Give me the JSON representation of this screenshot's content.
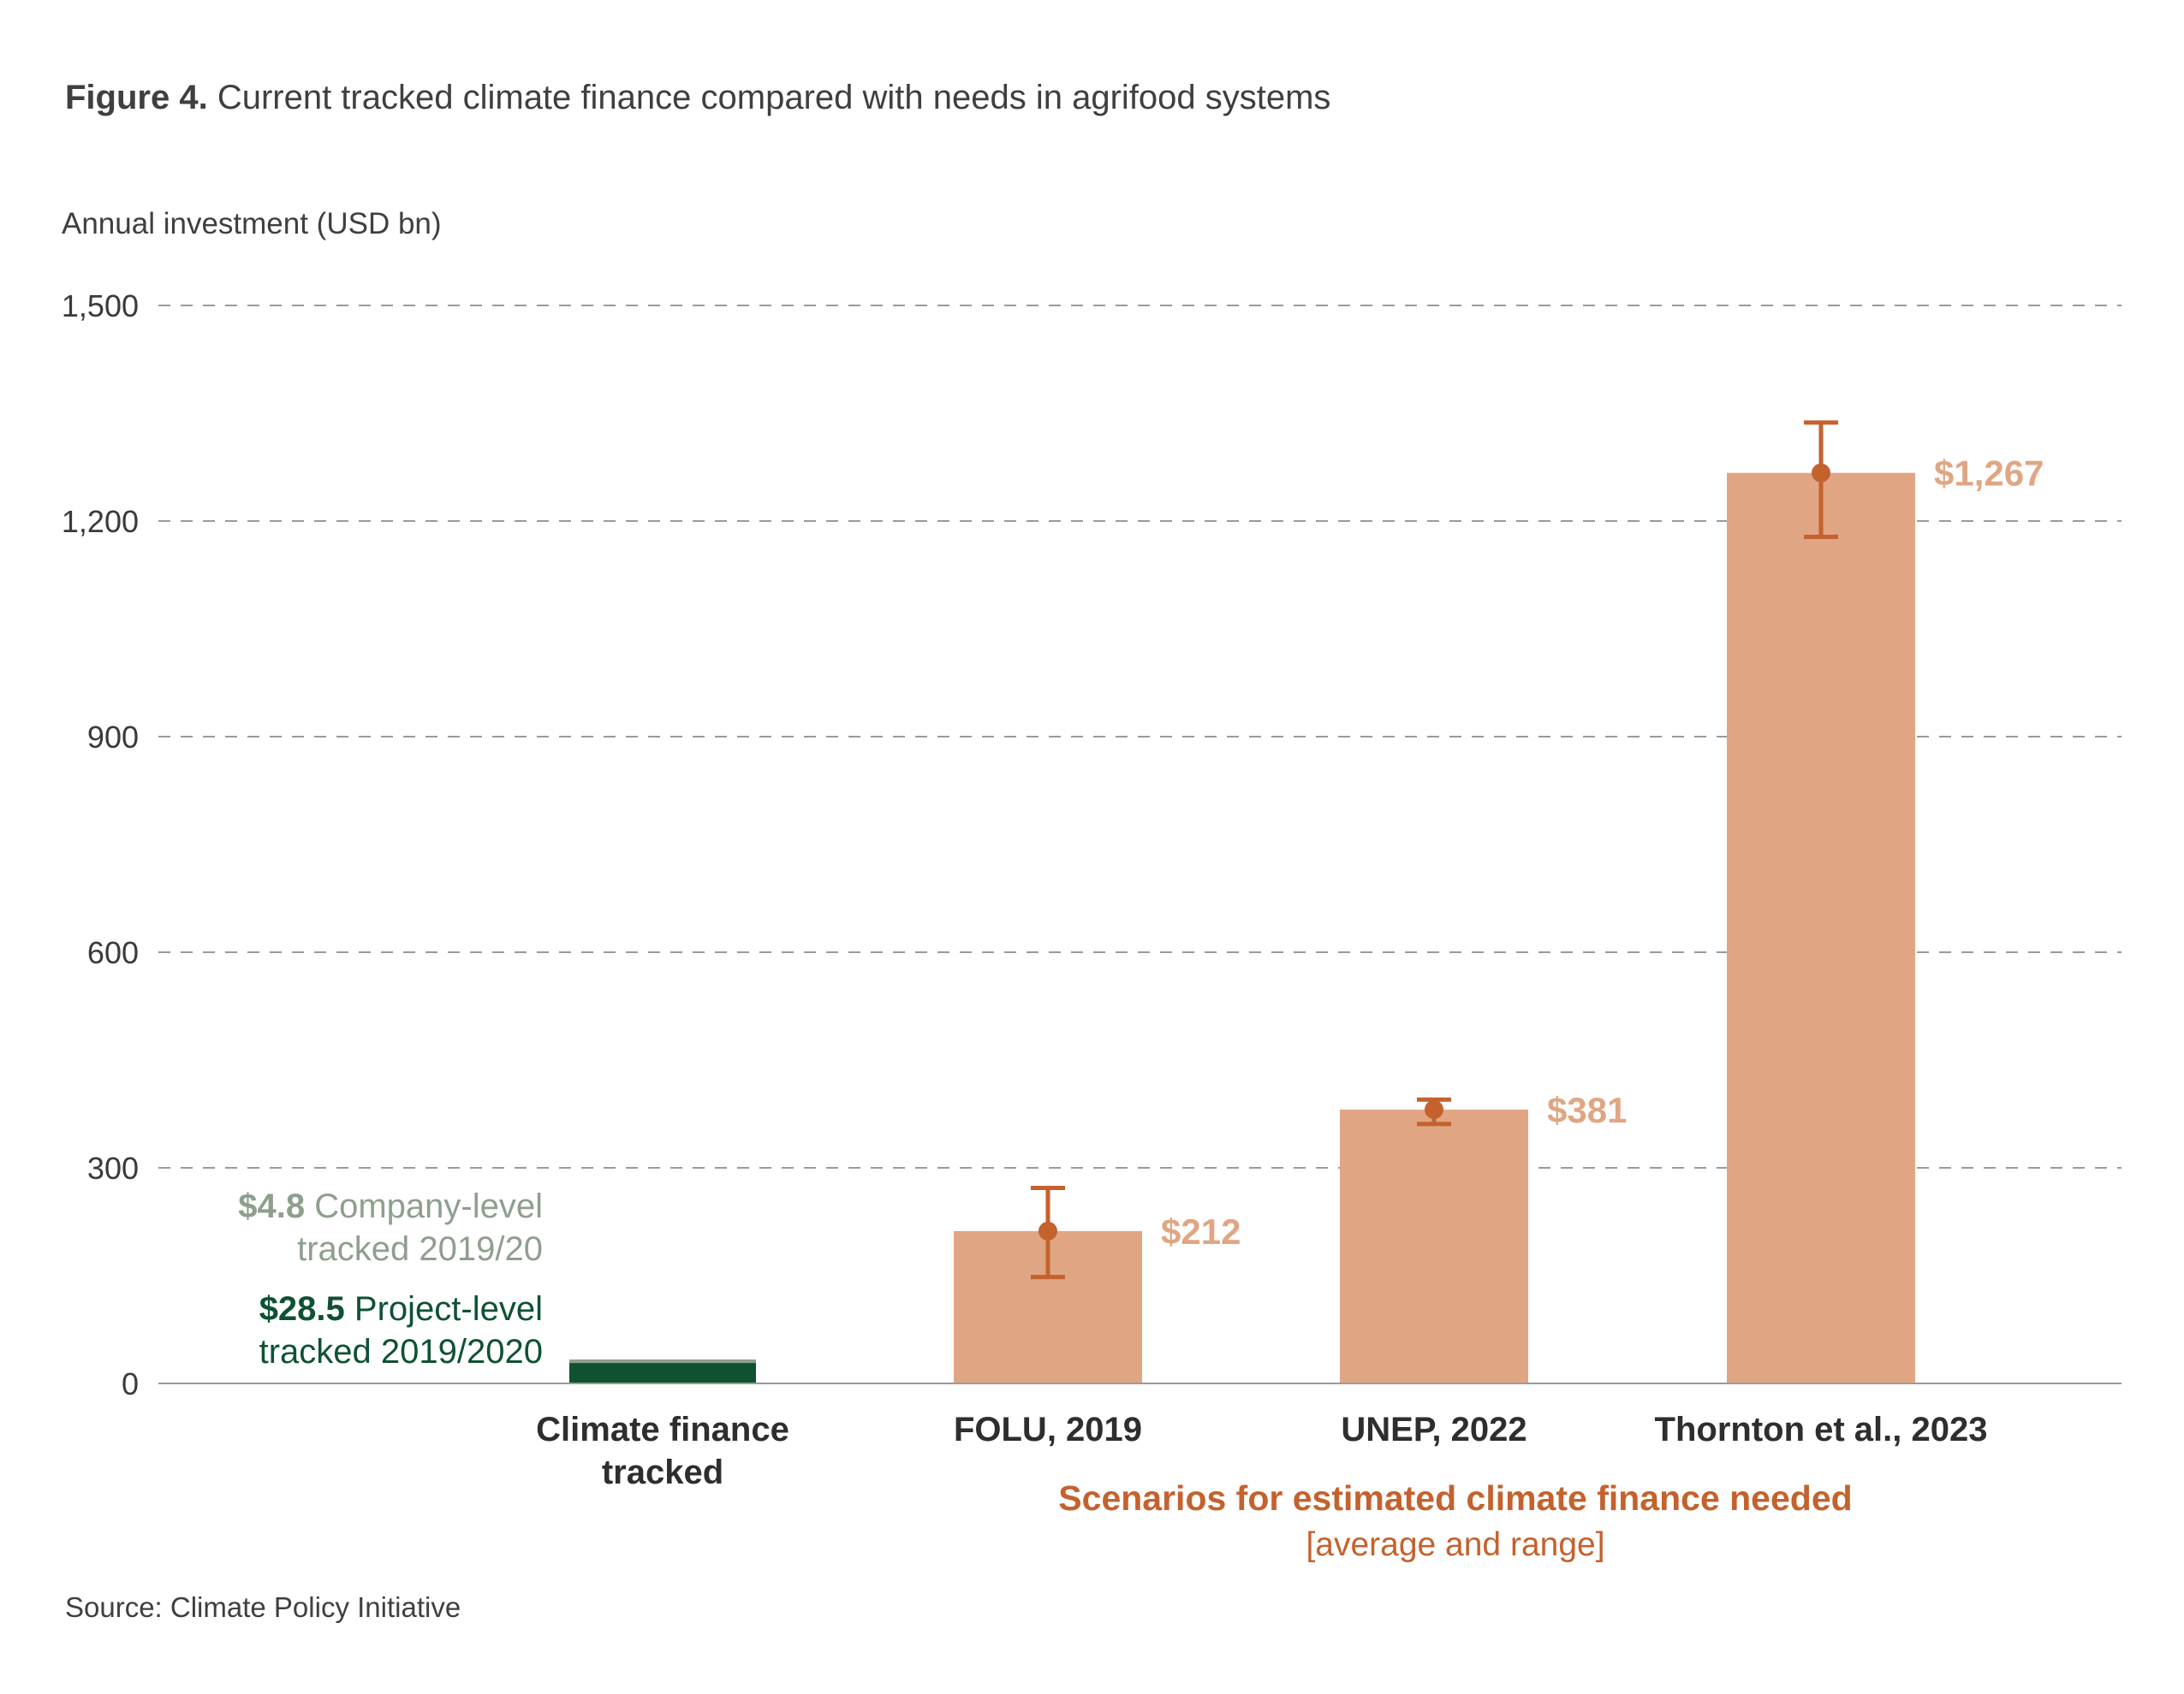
{
  "figure": {
    "title_prefix": "Figure 4.",
    "title_text": " Current tracked climate finance compared with needs in agrifood systems",
    "source": "Source: Climate Policy Initiative"
  },
  "annotations": {
    "company_value": "$4.8",
    "company_text_line1": " Company-level",
    "company_text_line2": "tracked 2019/20",
    "project_value": "$28.5",
    "project_text_line1": " Project-level",
    "project_text_line2": "tracked 2019/2020"
  },
  "scenarios_caption": {
    "title": "Scenarios for estimated climate finance needed",
    "subtitle": "[average and range]"
  },
  "colors": {
    "needs_bar": "#e0a684",
    "error_bar": "#c4622d",
    "value_label": "#e0a684",
    "project_level": "#0e5232",
    "company_level": "#8e9f8e",
    "gridline": "#9a9a9a",
    "axis": "#9a9a9a"
  },
  "chart_data": {
    "type": "bar",
    "title": "Current tracked climate finance compared with needs in agrifood systems",
    "ylabel": "Annual investment (USD bn)",
    "xlabel": "",
    "ylim": [
      0,
      1500
    ],
    "yticks": [
      0,
      300,
      600,
      900,
      1200,
      1500
    ],
    "ytick_labels": [
      "0",
      "300",
      "600",
      "900",
      "1,200",
      "1,500"
    ],
    "grid": true,
    "categories": [
      "Climate finance tracked",
      "FOLU, 2019",
      "UNEP, 2022",
      "Thornton et al., 2023"
    ],
    "category_label_lines": [
      [
        "Climate finance",
        "tracked"
      ],
      [
        "FOLU, 2019"
      ],
      [
        "UNEP, 2022"
      ],
      [
        "Thornton et al., 2023"
      ]
    ],
    "tracked_stack": [
      {
        "name": "Project-level tracked 2019/2020",
        "value": 28.5
      },
      {
        "name": "Company-level tracked 2019/20",
        "value": 4.8
      }
    ],
    "needs": [
      {
        "category": "FOLU, 2019",
        "value": 212,
        "label": "$212",
        "range": [
          148,
          272
        ]
      },
      {
        "category": "UNEP, 2022",
        "value": 381,
        "label": "$381",
        "range": [
          361,
          395
        ]
      },
      {
        "category": "Thornton et al., 2023",
        "value": 1267,
        "label": "$1,267",
        "range": [
          1178,
          1337
        ]
      }
    ]
  }
}
